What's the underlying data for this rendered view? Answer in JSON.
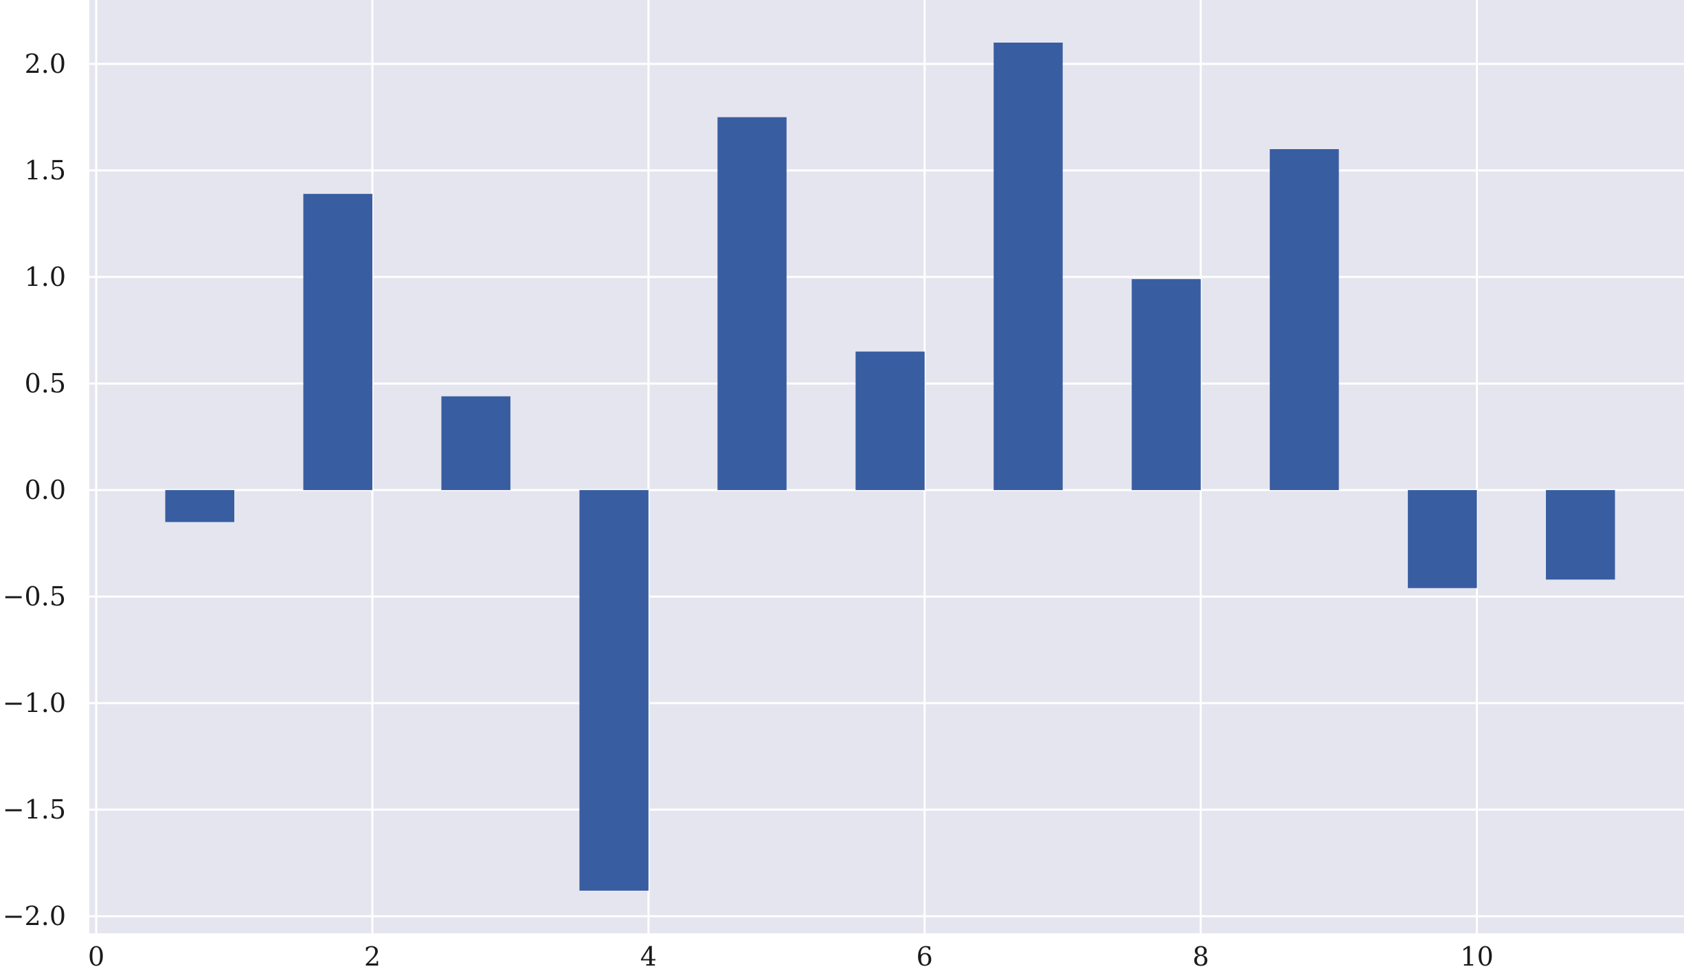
{
  "chart_data": {
    "type": "bar",
    "title": "",
    "xlabel": "",
    "ylabel": "",
    "x": [
      1,
      2,
      3,
      4,
      5,
      6,
      7,
      8,
      9,
      10,
      11
    ],
    "values": [
      -0.15,
      1.39,
      0.44,
      -1.88,
      1.75,
      0.65,
      2.1,
      0.99,
      1.6,
      -0.46,
      -0.42
    ],
    "bar_width": 0.5,
    "bar_align": "left-of-x",
    "xlim": [
      -0.05,
      11.5
    ],
    "ylim": [
      -2.08,
      2.3
    ],
    "xticks": [
      0,
      2,
      4,
      6,
      8,
      10
    ],
    "xtick_labels": [
      "0",
      "2",
      "4",
      "6",
      "8",
      "10"
    ],
    "yticks": [
      -2.0,
      -1.5,
      -1.0,
      -0.5,
      0.0,
      0.5,
      1.0,
      1.5,
      2.0
    ],
    "ytick_labels": [
      "−2.0",
      "−1.5",
      "−1.0",
      "−0.5",
      "0.0",
      "0.5",
      "1.0",
      "1.5",
      "2.0"
    ],
    "grid": true,
    "legend": false,
    "colors": {
      "bar": "#385da1",
      "plot_background": "#e5e5ef",
      "grid": "#ffffff",
      "page_background": "#ffffff"
    }
  }
}
